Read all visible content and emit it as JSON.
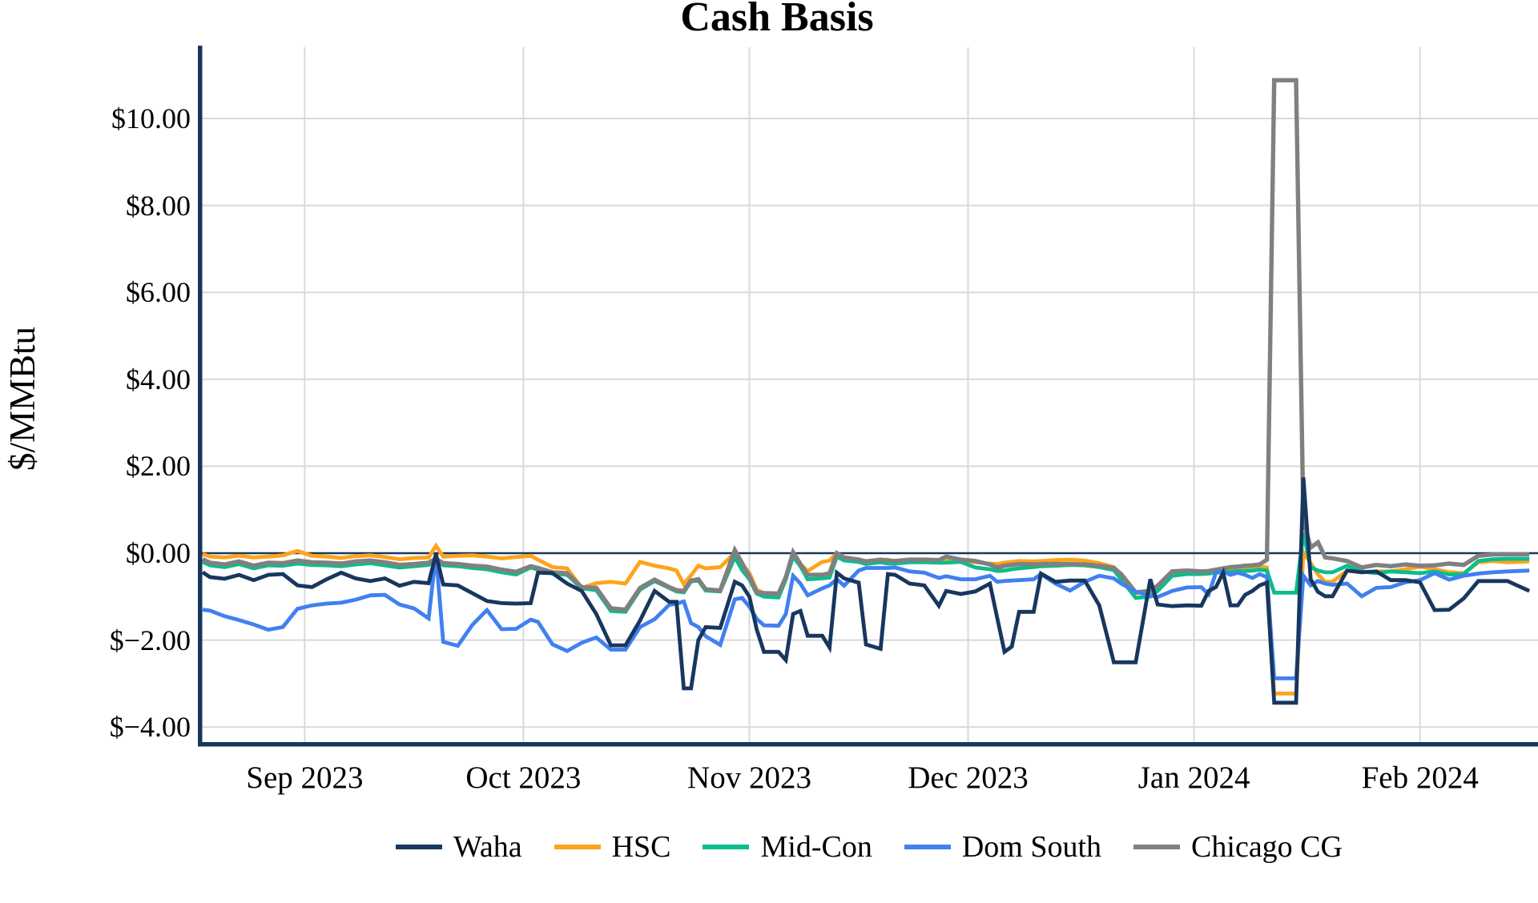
{
  "chart_data": {
    "type": "line",
    "title": "Cash Basis",
    "ylabel": "$/MMBtu",
    "ylim": [
      -4.55,
      11.6
    ],
    "grid": true,
    "legend_position": "bottom",
    "gridline_color": "#d9d9d9",
    "zero_line_color": "#17375e",
    "axis_color": "#17375e",
    "y_ticks": [
      {
        "value": 10,
        "label": "$10.00"
      },
      {
        "value": 8,
        "label": "$8.00"
      },
      {
        "value": 6,
        "label": "$6.00"
      },
      {
        "value": 4,
        "label": "$4.00"
      },
      {
        "value": 2,
        "label": "$2.00"
      },
      {
        "value": 0,
        "label": "$0.00"
      },
      {
        "value": -2,
        "label": "$−2.00"
      },
      {
        "value": -4,
        "label": "$−4.00"
      }
    ],
    "x_ticks": [
      {
        "date": "2023-09-01",
        "label": "Sep 2023"
      },
      {
        "date": "2023-10-01",
        "label": "Oct 2023"
      },
      {
        "date": "2023-11-01",
        "label": "Nov 2023"
      },
      {
        "date": "2023-12-01",
        "label": "Dec 2023"
      },
      {
        "date": "2024-01-01",
        "label": "Jan 2024"
      },
      {
        "date": "2024-02-01",
        "label": "Feb 2024"
      }
    ],
    "draw_order": [
      1,
      2,
      4,
      3,
      0
    ],
    "dates": [
      "2023-08-18",
      "2023-08-19",
      "2023-08-21",
      "2023-08-23",
      "2023-08-25",
      "2023-08-27",
      "2023-08-29",
      "2023-08-31",
      "2023-09-02",
      "2023-09-04",
      "2023-09-06",
      "2023-09-08",
      "2023-09-10",
      "2023-09-12",
      "2023-09-14",
      "2023-09-16",
      "2023-09-18",
      "2023-09-19",
      "2023-09-20",
      "2023-09-22",
      "2023-09-24",
      "2023-09-26",
      "2023-09-28",
      "2023-09-30",
      "2023-10-02",
      "2023-10-03",
      "2023-10-05",
      "2023-10-07",
      "2023-10-09",
      "2023-10-11",
      "2023-10-13",
      "2023-10-15",
      "2023-10-17",
      "2023-10-19",
      "2023-10-21",
      "2023-10-22",
      "2023-10-23",
      "2023-10-24",
      "2023-10-25",
      "2023-10-26",
      "2023-10-28",
      "2023-10-30",
      "2023-10-31",
      "2023-11-01",
      "2023-11-02",
      "2023-11-03",
      "2023-11-05",
      "2023-11-06",
      "2023-11-07",
      "2023-11-08",
      "2023-11-09",
      "2023-11-11",
      "2023-11-12",
      "2023-11-13",
      "2023-11-14",
      "2023-11-16",
      "2023-11-17",
      "2023-11-19",
      "2023-11-20",
      "2023-11-21",
      "2023-11-23",
      "2023-11-25",
      "2023-11-27",
      "2023-11-28",
      "2023-11-30",
      "2023-12-02",
      "2023-12-04",
      "2023-12-05",
      "2023-12-06",
      "2023-12-07",
      "2023-12-08",
      "2023-12-10",
      "2023-12-11",
      "2023-12-13",
      "2023-12-15",
      "2023-12-17",
      "2023-12-19",
      "2023-12-21",
      "2023-12-22",
      "2023-12-24",
      "2023-12-26",
      "2023-12-27",
      "2023-12-29",
      "2023-12-31",
      "2024-01-02",
      "2024-01-03",
      "2024-01-04",
      "2024-01-05",
      "2024-01-06",
      "2024-01-07",
      "2024-01-08",
      "2024-01-09",
      "2024-01-10",
      "2024-01-11",
      "2024-01-12",
      "2024-01-13",
      "2024-01-14",
      "2024-01-15",
      "2024-01-16",
      "2024-01-17",
      "2024-01-18",
      "2024-01-19",
      "2024-01-20",
      "2024-01-22",
      "2024-01-24",
      "2024-01-26",
      "2024-01-28",
      "2024-01-30",
      "2024-02-01",
      "2024-02-03",
      "2024-02-05",
      "2024-02-07",
      "2024-02-09",
      "2024-02-11",
      "2024-02-13",
      "2024-02-16"
    ],
    "series": [
      {
        "name": "Waha",
        "color": "#17375e",
        "width": 4.8,
        "values": [
          -0.44,
          -0.55,
          -0.59,
          -0.5,
          -0.62,
          -0.5,
          -0.48,
          -0.74,
          -0.78,
          -0.6,
          -0.45,
          -0.58,
          -0.64,
          -0.58,
          -0.75,
          -0.66,
          -0.69,
          -0.02,
          -0.72,
          -0.74,
          -0.92,
          -1.1,
          -1.15,
          -1.16,
          -1.15,
          -0.45,
          -0.46,
          -0.7,
          -0.87,
          -1.4,
          -2.12,
          -2.12,
          -1.55,
          -0.87,
          -1.12,
          -1.12,
          -3.11,
          -3.11,
          -2.0,
          -1.7,
          -1.72,
          -0.66,
          -0.74,
          -1.0,
          -1.75,
          -2.27,
          -2.27,
          -2.46,
          -1.4,
          -1.33,
          -1.9,
          -1.9,
          -2.17,
          -0.45,
          -0.58,
          -0.68,
          -2.1,
          -2.2,
          -0.48,
          -0.5,
          -0.7,
          -0.74,
          -1.21,
          -0.87,
          -0.94,
          -0.88,
          -0.7,
          -1.49,
          -2.27,
          -2.15,
          -1.35,
          -1.35,
          -0.47,
          -0.66,
          -0.63,
          -0.63,
          -1.2,
          -2.51,
          -2.51,
          -2.51,
          -0.6,
          -1.18,
          -1.22,
          -1.2,
          -1.21,
          -0.87,
          -0.78,
          -0.45,
          -1.2,
          -1.2,
          -0.96,
          -0.87,
          -0.74,
          -0.68,
          -3.44,
          -3.44,
          -3.44,
          -3.44,
          1.74,
          -0.6,
          -0.89,
          -0.99,
          -0.99,
          -0.4,
          -0.44,
          -0.42,
          -0.62,
          -0.62,
          -0.67,
          -1.31,
          -1.3,
          -1.04,
          -0.64,
          -0.64,
          -0.64,
          -0.87
        ]
      },
      {
        "name": "HSC",
        "color": "#fea31b",
        "width": 4.8,
        "values": [
          -0.02,
          -0.08,
          -0.1,
          -0.06,
          -0.1,
          -0.08,
          -0.05,
          0.05,
          -0.06,
          -0.08,
          -0.11,
          -0.07,
          -0.05,
          -0.09,
          -0.14,
          -0.11,
          -0.1,
          0.17,
          -0.08,
          -0.06,
          -0.05,
          -0.08,
          -0.12,
          -0.09,
          -0.06,
          -0.15,
          -0.32,
          -0.35,
          -0.8,
          -0.69,
          -0.66,
          -0.7,
          -0.2,
          -0.29,
          -0.35,
          -0.4,
          -0.71,
          -0.51,
          -0.29,
          -0.35,
          -0.32,
          0.01,
          -0.26,
          -0.45,
          -0.84,
          -0.92,
          -0.96,
          -0.6,
          -0.02,
          -0.25,
          -0.41,
          -0.2,
          -0.17,
          0.0,
          -0.11,
          -0.14,
          -0.24,
          -0.16,
          -0.15,
          -0.22,
          -0.17,
          -0.17,
          -0.18,
          -0.18,
          -0.17,
          -0.21,
          -0.24,
          -0.25,
          -0.22,
          -0.2,
          -0.18,
          -0.19,
          -0.18,
          -0.16,
          -0.15,
          -0.17,
          -0.23,
          -0.32,
          -0.51,
          -0.92,
          -0.91,
          -0.78,
          -0.45,
          -0.43,
          -0.45,
          -0.44,
          -0.42,
          -0.41,
          -0.38,
          -0.4,
          -0.37,
          -0.33,
          -0.31,
          -0.33,
          -3.23,
          -3.23,
          -3.23,
          -3.23,
          0.02,
          -0.23,
          -0.49,
          -0.66,
          -0.66,
          -0.4,
          -0.44,
          -0.42,
          -0.42,
          -0.37,
          -0.31,
          -0.37,
          -0.44,
          -0.46,
          -0.21,
          -0.18,
          -0.21,
          -0.19
        ]
      },
      {
        "name": "Mid-Con",
        "color": "#0abd8d",
        "width": 4.8,
        "values": [
          -0.2,
          -0.28,
          -0.32,
          -0.25,
          -0.35,
          -0.28,
          -0.29,
          -0.24,
          -0.27,
          -0.28,
          -0.3,
          -0.26,
          -0.23,
          -0.28,
          -0.33,
          -0.3,
          -0.27,
          -0.12,
          -0.28,
          -0.3,
          -0.34,
          -0.37,
          -0.44,
          -0.49,
          -0.33,
          -0.38,
          -0.47,
          -0.5,
          -0.81,
          -0.85,
          -1.33,
          -1.35,
          -0.84,
          -0.64,
          -0.8,
          -0.88,
          -0.9,
          -0.65,
          -0.63,
          -0.86,
          -0.88,
          -0.09,
          -0.39,
          -0.6,
          -0.93,
          -1.0,
          -1.02,
          -0.6,
          -0.08,
          -0.3,
          -0.6,
          -0.58,
          -0.56,
          -0.08,
          -0.17,
          -0.2,
          -0.25,
          -0.21,
          -0.24,
          -0.24,
          -0.21,
          -0.21,
          -0.22,
          -0.22,
          -0.2,
          -0.33,
          -0.37,
          -0.41,
          -0.4,
          -0.37,
          -0.35,
          -0.32,
          -0.3,
          -0.29,
          -0.27,
          -0.28,
          -0.32,
          -0.39,
          -0.6,
          -1.03,
          -1.0,
          -0.87,
          -0.52,
          -0.48,
          -0.48,
          -0.47,
          -0.45,
          -0.44,
          -0.43,
          -0.41,
          -0.41,
          -0.4,
          -0.38,
          -0.4,
          -0.91,
          -0.91,
          -0.91,
          -0.91,
          0.47,
          -0.32,
          -0.4,
          -0.44,
          -0.44,
          -0.29,
          -0.42,
          -0.46,
          -0.42,
          -0.44,
          -0.46,
          -0.42,
          -0.49,
          -0.48,
          -0.18,
          -0.14,
          -0.13,
          -0.13
        ]
      },
      {
        "name": "Dom South",
        "color": "#4080f0",
        "width": 4.8,
        "values": [
          -1.3,
          -1.32,
          -1.45,
          -1.54,
          -1.64,
          -1.76,
          -1.7,
          -1.28,
          -1.2,
          -1.16,
          -1.14,
          -1.07,
          -0.97,
          -0.96,
          -1.18,
          -1.27,
          -1.5,
          -0.02,
          -2.04,
          -2.13,
          -1.65,
          -1.31,
          -1.75,
          -1.74,
          -1.53,
          -1.58,
          -2.1,
          -2.25,
          -2.06,
          -1.94,
          -2.22,
          -2.22,
          -1.7,
          -1.52,
          -1.19,
          -1.16,
          -1.11,
          -1.61,
          -1.7,
          -1.91,
          -2.11,
          -1.06,
          -1.03,
          -1.23,
          -1.51,
          -1.66,
          -1.67,
          -1.4,
          -0.52,
          -0.7,
          -0.97,
          -0.81,
          -0.74,
          -0.6,
          -0.75,
          -0.4,
          -0.34,
          -0.34,
          -0.34,
          -0.33,
          -0.42,
          -0.45,
          -0.57,
          -0.53,
          -0.6,
          -0.6,
          -0.52,
          -0.66,
          -0.64,
          -0.63,
          -0.62,
          -0.6,
          -0.48,
          -0.7,
          -0.86,
          -0.66,
          -0.52,
          -0.58,
          -0.7,
          -0.89,
          -0.97,
          -1.01,
          -0.87,
          -0.79,
          -0.78,
          -0.95,
          -0.45,
          -0.42,
          -0.5,
          -0.45,
          -0.5,
          -0.57,
          -0.48,
          -0.55,
          -2.88,
          -2.88,
          -2.88,
          -2.88,
          -0.52,
          -0.74,
          -0.64,
          -0.7,
          -0.73,
          -0.7,
          -0.99,
          -0.8,
          -0.78,
          -0.67,
          -0.62,
          -0.46,
          -0.61,
          -0.52,
          -0.47,
          -0.44,
          -0.42,
          -0.4
        ]
      },
      {
        "name": "Chicago CG",
        "color": "#808080",
        "width": 5.4,
        "values": [
          -0.14,
          -0.22,
          -0.26,
          -0.19,
          -0.29,
          -0.22,
          -0.23,
          -0.17,
          -0.21,
          -0.22,
          -0.24,
          -0.19,
          -0.17,
          -0.21,
          -0.27,
          -0.25,
          -0.22,
          -0.13,
          -0.23,
          -0.25,
          -0.29,
          -0.31,
          -0.38,
          -0.43,
          -0.3,
          -0.34,
          -0.44,
          -0.46,
          -0.78,
          -0.8,
          -1.27,
          -1.3,
          -0.8,
          -0.61,
          -0.78,
          -0.85,
          -0.87,
          -0.63,
          -0.6,
          -0.83,
          -0.86,
          0.07,
          -0.23,
          -0.54,
          -0.9,
          -0.92,
          -0.93,
          -0.55,
          0.02,
          -0.25,
          -0.5,
          -0.5,
          -0.46,
          0.0,
          -0.1,
          -0.15,
          -0.19,
          -0.15,
          -0.17,
          -0.18,
          -0.15,
          -0.15,
          -0.16,
          -0.08,
          -0.15,
          -0.18,
          -0.26,
          -0.33,
          -0.29,
          -0.27,
          -0.25,
          -0.26,
          -0.25,
          -0.25,
          -0.25,
          -0.26,
          -0.29,
          -0.34,
          -0.48,
          -0.9,
          -0.87,
          -0.75,
          -0.42,
          -0.4,
          -0.42,
          -0.41,
          -0.38,
          -0.35,
          -0.32,
          -0.31,
          -0.29,
          -0.28,
          -0.26,
          -0.15,
          10.88,
          10.88,
          10.88,
          10.88,
          0.75,
          0.13,
          0.25,
          -0.1,
          -0.12,
          -0.18,
          -0.33,
          -0.27,
          -0.3,
          -0.26,
          -0.29,
          -0.28,
          -0.24,
          -0.27,
          -0.06,
          -0.03,
          -0.03,
          -0.03
        ]
      }
    ]
  }
}
